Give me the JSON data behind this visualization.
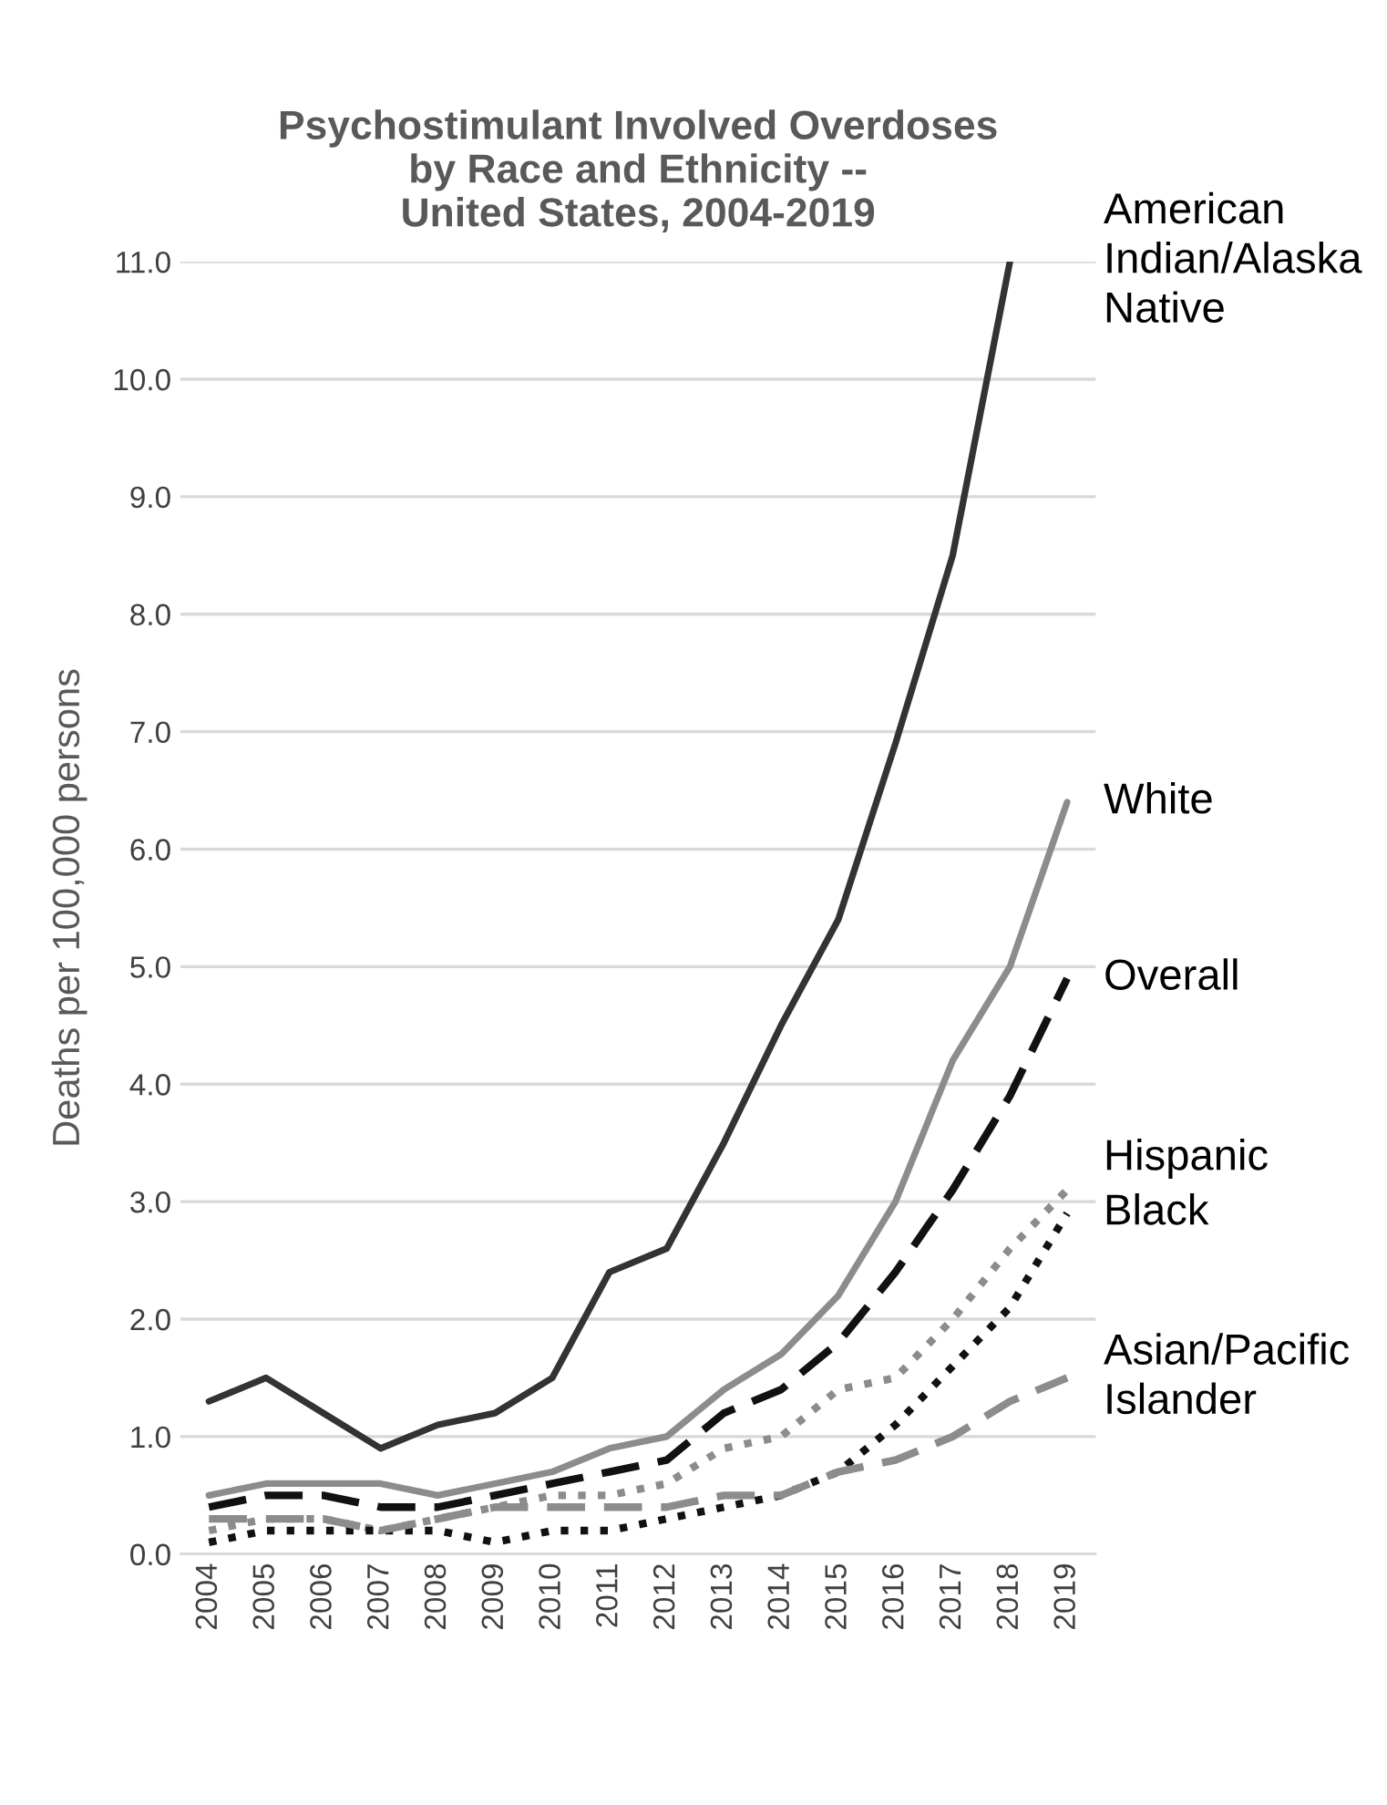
{
  "chart_data": {
    "type": "line",
    "title": "Psychostimulant Involved Overdoses\nby Race and Ethnicity --\nUnited States, 2004-2019",
    "ylabel": "Deaths per 100,000 persons",
    "categories": [
      "2004",
      "2005",
      "2006",
      "2007",
      "2008",
      "2009",
      "2010",
      "2011",
      "2012",
      "2013",
      "2014",
      "2015",
      "2016",
      "2017",
      "2018",
      "2019"
    ],
    "series": [
      {
        "name": "American\nIndian/Alaska\nNative",
        "color": "#333333",
        "line_style": "solid",
        "values": [
          1.3,
          1.5,
          1.2,
          0.9,
          1.1,
          1.2,
          1.5,
          2.4,
          2.6,
          3.5,
          4.5,
          5.4,
          6.9,
          8.5,
          11.0,
          null
        ]
      },
      {
        "name": "White",
        "color": "#8c8c8c",
        "line_style": "solid",
        "values": [
          0.5,
          0.6,
          0.6,
          0.6,
          0.5,
          0.6,
          0.7,
          0.9,
          1.0,
          1.4,
          1.7,
          2.2,
          3.0,
          4.2,
          5.0,
          6.4
        ]
      },
      {
        "name": "Overall",
        "color": "#111111",
        "line_style": "dashed",
        "values": [
          0.4,
          0.5,
          0.5,
          0.4,
          0.4,
          0.5,
          0.6,
          0.7,
          0.8,
          1.2,
          1.4,
          1.8,
          2.4,
          3.1,
          3.9,
          4.9
        ]
      },
      {
        "name": "Hispanic",
        "color": "#8c8c8c",
        "line_style": "dotted",
        "values": [
          0.2,
          0.3,
          0.3,
          0.2,
          0.3,
          0.4,
          0.5,
          0.5,
          0.6,
          0.9,
          1.0,
          1.4,
          1.5,
          2.0,
          2.6,
          3.1
        ]
      },
      {
        "name": "Black",
        "color": "#111111",
        "line_style": "dotted",
        "values": [
          0.1,
          0.2,
          0.2,
          0.2,
          0.2,
          0.1,
          0.2,
          0.2,
          0.3,
          0.4,
          0.5,
          0.7,
          1.1,
          1.6,
          2.1,
          2.9
        ]
      },
      {
        "name": "Asian/Pacific\nIslander",
        "color": "#8c8c8c",
        "line_style": "dashed",
        "values": [
          0.3,
          0.3,
          0.3,
          0.2,
          0.3,
          0.4,
          0.4,
          0.4,
          0.4,
          0.5,
          0.5,
          0.7,
          0.8,
          1.0,
          1.3,
          1.5
        ]
      }
    ],
    "ylim": [
      0,
      11.0
    ],
    "yticks": [
      {
        "value": 0,
        "label": "0.0"
      },
      {
        "value": 1,
        "label": "1.0"
      },
      {
        "value": 2,
        "label": "2.0"
      },
      {
        "value": 3,
        "label": "3.0"
      },
      {
        "value": 4,
        "label": "4.0"
      },
      {
        "value": 5,
        "label": "5.0"
      },
      {
        "value": 6,
        "label": "6.0"
      },
      {
        "value": 7,
        "label": "7.0"
      },
      {
        "value": 8,
        "label": "8.0"
      },
      {
        "value": 9,
        "label": "9.0"
      },
      {
        "value": 10,
        "label": "10.0"
      },
      {
        "value": 11,
        "label": "11.0"
      }
    ],
    "grid": "y"
  }
}
